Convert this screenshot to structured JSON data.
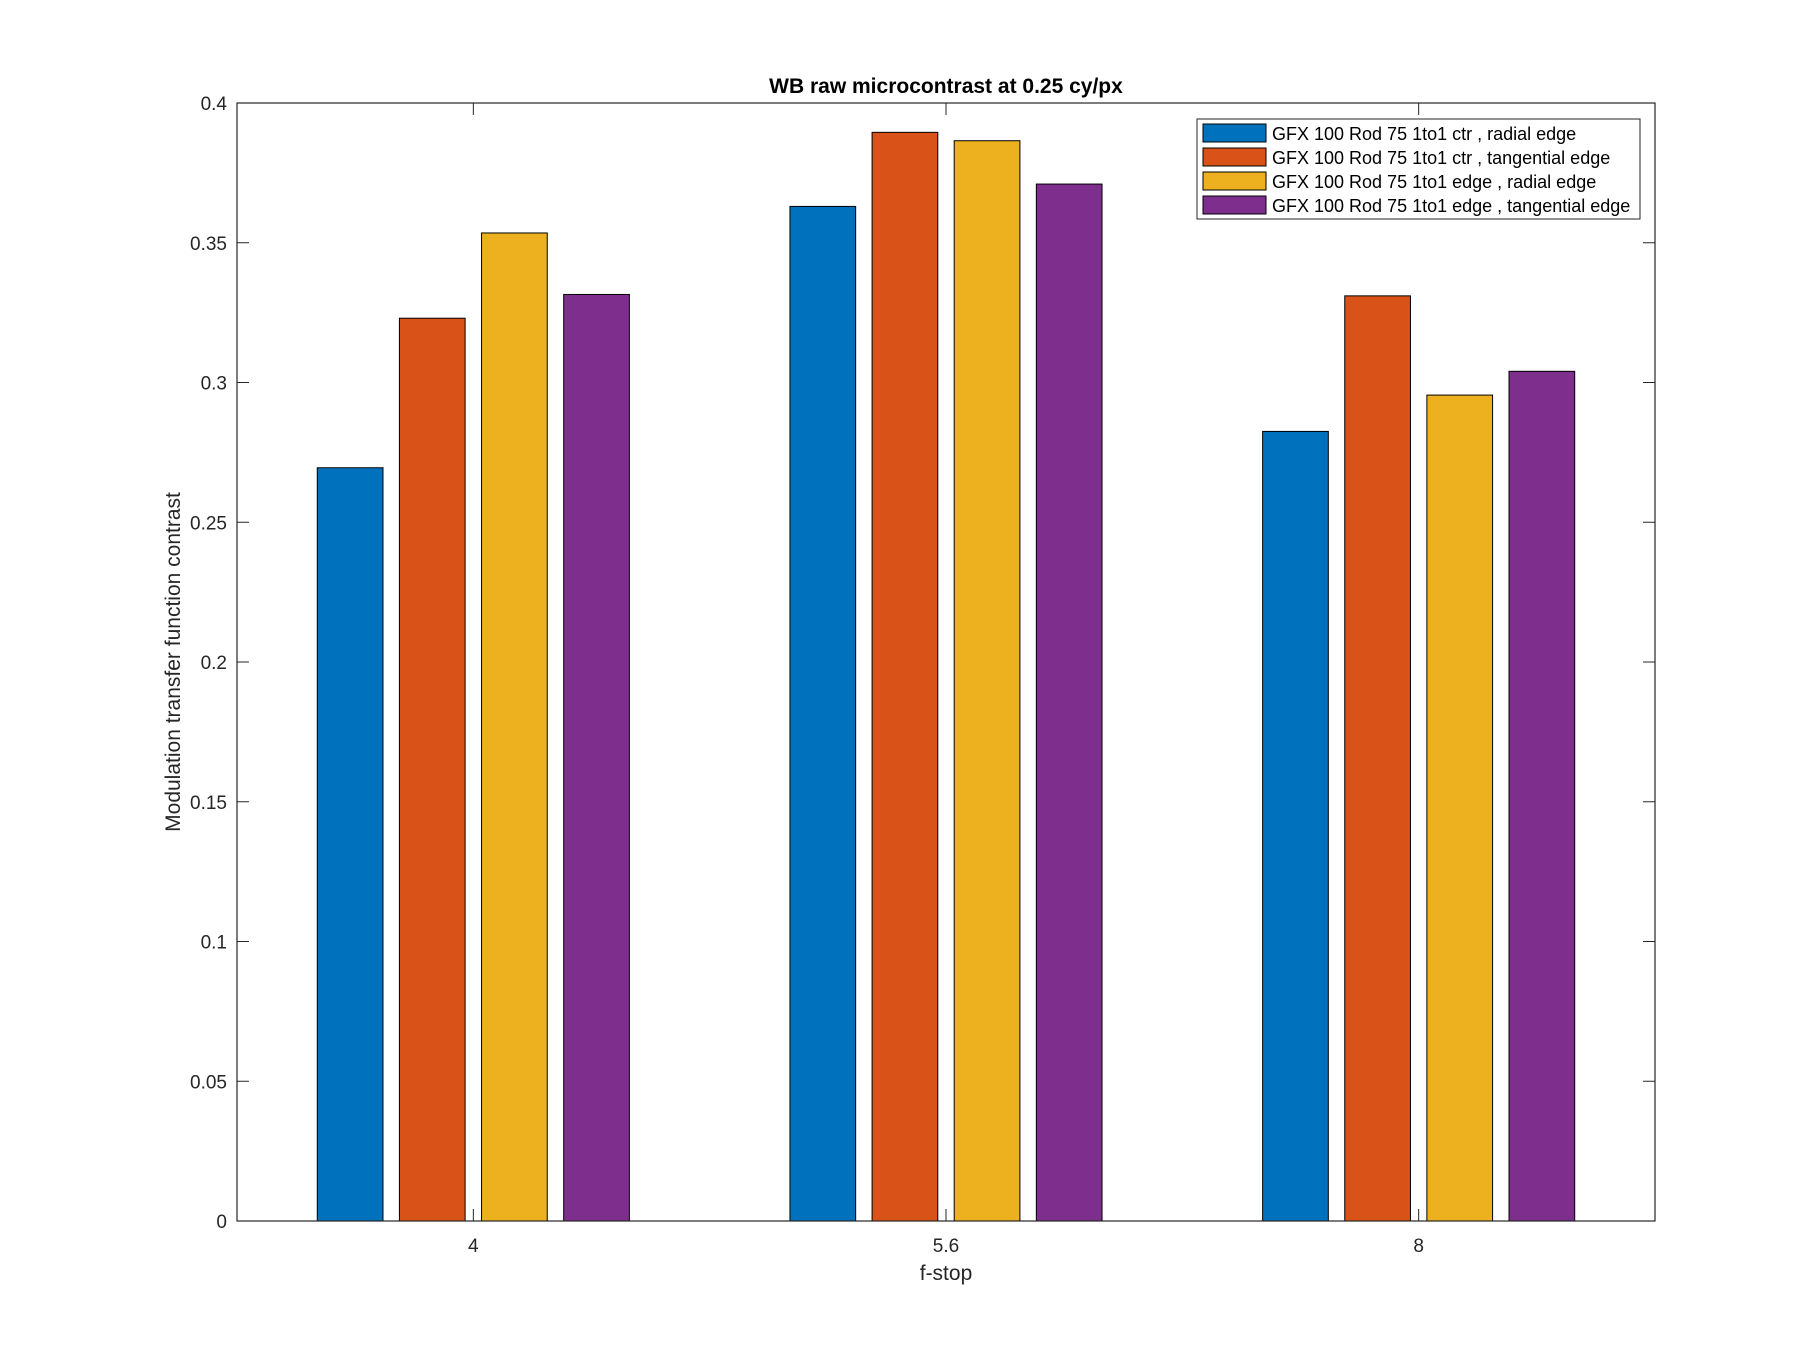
{
  "chart_data": {
    "type": "bar",
    "title": "WB raw  microcontrast at 0.25 cy/px",
    "xlabel": "f-stop",
    "ylabel": "Modulation transfer function contrast",
    "categories": [
      "4",
      "5.6",
      "8"
    ],
    "ylim": [
      0,
      0.4
    ],
    "yticks": [
      0,
      0.05,
      0.1,
      0.15,
      0.2,
      0.25,
      0.3,
      0.35,
      0.4
    ],
    "ytick_labels": [
      "0",
      "0.05",
      "0.1",
      "0.15",
      "0.2",
      "0.25",
      "0.3",
      "0.35",
      "0.4"
    ],
    "grid": false,
    "legend_position": "top-right",
    "series": [
      {
        "name": "GFX 100 Rod 75 1to1 ctr , radial edge",
        "color": "#0072BD",
        "values": [
          0.2695,
          0.363,
          0.2825
        ]
      },
      {
        "name": "GFX 100 Rod 75 1to1 ctr , tangential edge",
        "color": "#D95319",
        "values": [
          0.323,
          0.3895,
          0.331
        ]
      },
      {
        "name": "GFX 100 Rod 75 1to1 edge , radial edge",
        "color": "#EDB120",
        "values": [
          0.3535,
          0.3865,
          0.2955
        ]
      },
      {
        "name": "GFX 100 Rod 75 1to1 edge , tangential edge",
        "color": "#7E2F8E",
        "values": [
          0.3315,
          0.371,
          0.304
        ]
      }
    ]
  }
}
